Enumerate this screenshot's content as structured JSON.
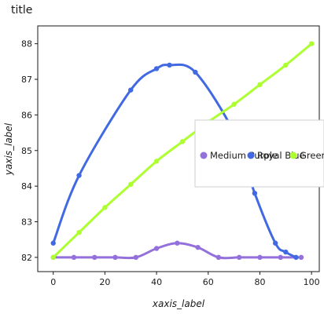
{
  "chart_data": {
    "type": "line",
    "title": "title",
    "xlabel": "xaxis_label",
    "ylabel": "yaxis_label",
    "xlim": [
      -6,
      103
    ],
    "ylim": [
      81.6,
      88.5
    ],
    "xticks": [
      0,
      20,
      40,
      60,
      80,
      100
    ],
    "yticks": [
      82,
      83,
      84,
      85,
      86,
      87,
      88
    ],
    "grid": false,
    "legend_position": "right",
    "series": [
      {
        "name": "Medium Purple",
        "color": "#9370DB",
        "x": [
          0,
          8,
          16,
          24,
          32,
          40,
          48,
          56,
          64,
          72,
          80,
          88,
          96
        ],
        "y": [
          82.0,
          82.0,
          82.0,
          82.0,
          82.0,
          82.25,
          82.4,
          82.28,
          82.0,
          82.0,
          82.0,
          82.0,
          82.0
        ]
      },
      {
        "name": "Royal Blue",
        "color": "#4169E1",
        "x": [
          0,
          10,
          30,
          40,
          45,
          55,
          70,
          78,
          86,
          90,
          94
        ],
        "y": [
          82.4,
          84.3,
          86.7,
          87.3,
          87.4,
          87.2,
          85.5,
          83.8,
          82.4,
          82.15,
          82.0
        ]
      },
      {
        "name": "Green Yellow",
        "color": "#ADFF2F",
        "x": [
          0,
          10,
          20,
          30,
          40,
          50,
          60,
          70,
          80,
          90,
          100
        ],
        "y": [
          82.0,
          82.7,
          83.4,
          84.05,
          84.7,
          85.25,
          85.8,
          86.3,
          86.85,
          87.4,
          88.0
        ]
      }
    ]
  }
}
